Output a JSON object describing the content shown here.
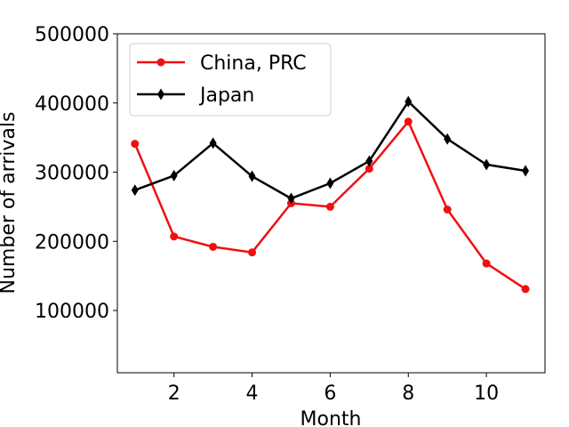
{
  "chart_data": {
    "type": "line",
    "title": "",
    "xlabel": "Month",
    "ylabel": "Number of arrivals",
    "x": [
      1,
      2,
      3,
      4,
      5,
      6,
      7,
      8,
      9,
      10,
      11
    ],
    "xlim": [
      0.55,
      11.5
    ],
    "ylim": [
      10000,
      500000
    ],
    "xticks": [
      2,
      4,
      6,
      8,
      10
    ],
    "yticks": [
      100000,
      200000,
      300000,
      400000,
      500000
    ],
    "grid": false,
    "legend_position": "top-left",
    "series": [
      {
        "name": "China, PRC",
        "color": "#ee1111",
        "marker": "circle",
        "values": [
          341000,
          207000,
          192000,
          184000,
          255000,
          250000,
          305000,
          373000,
          246000,
          168000,
          131000
        ]
      },
      {
        "name": "Japan",
        "color": "#000000",
        "marker": "diamond",
        "values": [
          274000,
          295000,
          342000,
          294000,
          262000,
          284000,
          316000,
          402000,
          348000,
          311000,
          302000
        ]
      }
    ]
  }
}
